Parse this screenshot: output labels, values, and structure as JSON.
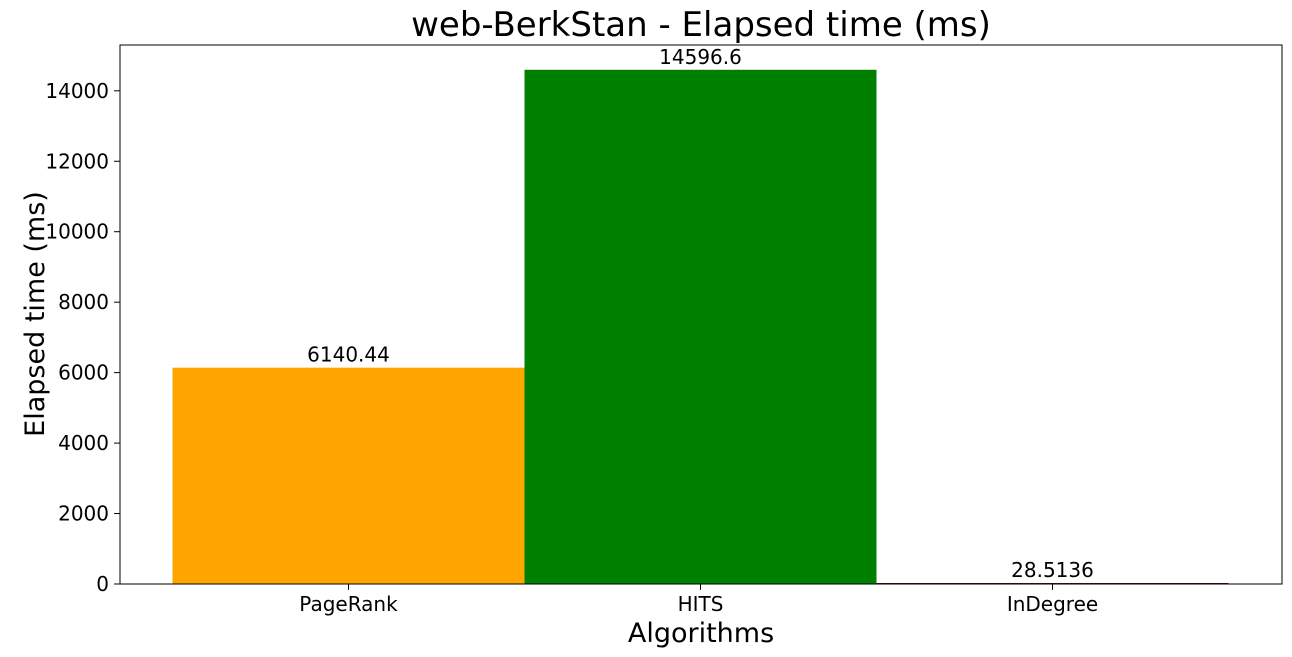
{
  "chart_data": {
    "type": "bar",
    "title": "web-BerkStan - Elapsed time (ms)",
    "xlabel": "Algorithms",
    "ylabel": "Elapsed time (ms)",
    "categories": [
      "PageRank",
      "HITS",
      "InDegree"
    ],
    "values": [
      6140.44,
      14596.6,
      28.5136
    ],
    "value_labels": [
      "6140.44",
      "14596.6",
      "28.5136"
    ],
    "colors": [
      "#ffa500",
      "#008000",
      "#8b0000"
    ],
    "ylim": [
      0,
      15300
    ],
    "yticks": [
      0,
      2000,
      4000,
      6000,
      8000,
      10000,
      12000,
      14000
    ],
    "ytick_labels": [
      "0",
      "2000",
      "4000",
      "6000",
      "8000",
      "10000",
      "12000",
      "14000"
    ],
    "grid": false,
    "legend": "none"
  }
}
